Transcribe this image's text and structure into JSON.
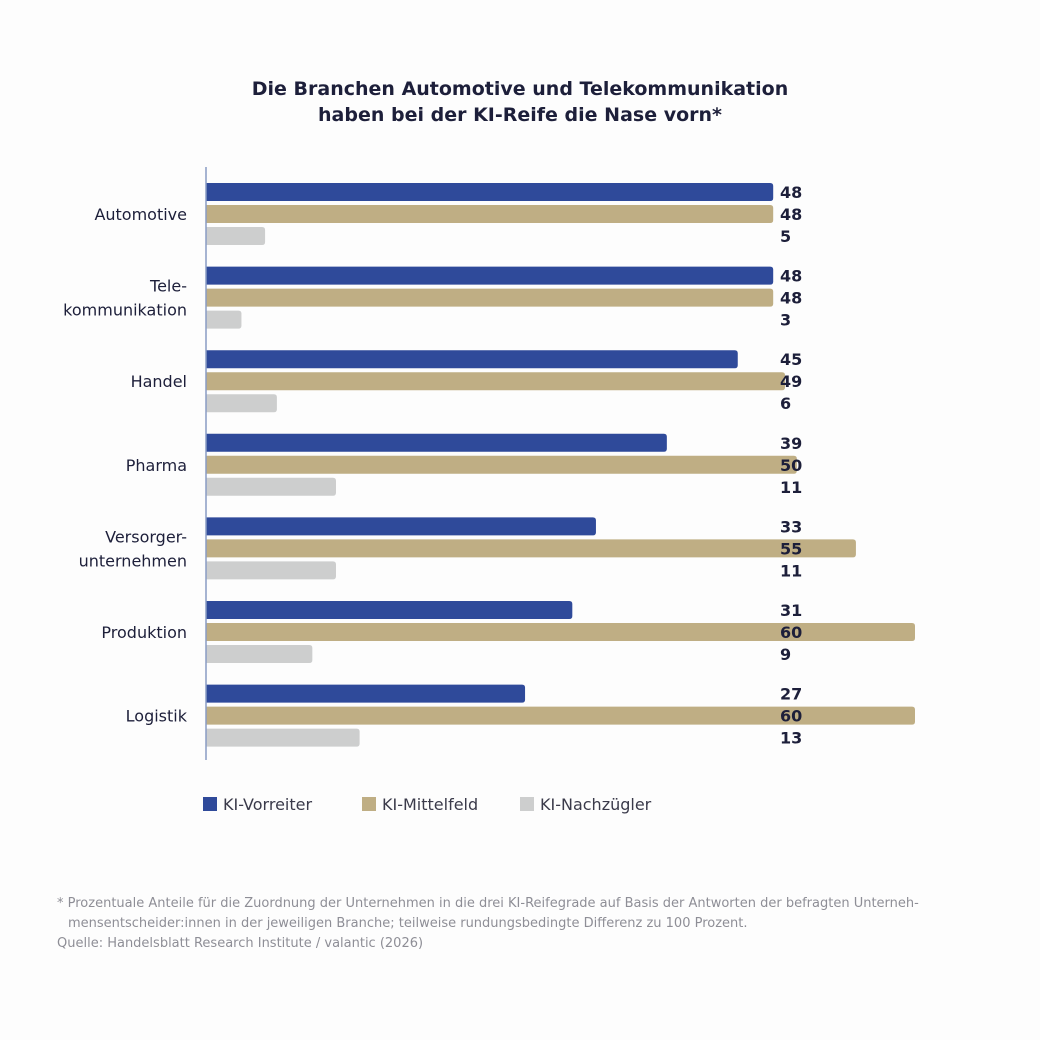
{
  "chart_data": {
    "type": "bar",
    "orientation": "horizontal",
    "title_lines": [
      "Die Branchen Automotive und Telekommunikation",
      "haben bei der KI-Reife die Nase vorn*"
    ],
    "categories": [
      [
        "Automotive"
      ],
      [
        "Tele-",
        "kommunikation"
      ],
      [
        "Handel"
      ],
      [
        "Pharma"
      ],
      [
        "Versorger-",
        "unternehmen"
      ],
      [
        "Produktion"
      ],
      [
        "Logistik"
      ]
    ],
    "series": [
      {
        "name": "KI-Vorreiter",
        "color": "#2f4a9a",
        "values": [
          48,
          48,
          45,
          39,
          33,
          31,
          27
        ]
      },
      {
        "name": "KI-Mittelfeld",
        "color": "#bfae84",
        "values": [
          48,
          48,
          49,
          50,
          55,
          60,
          60
        ]
      },
      {
        "name": "KI-Nachzügler",
        "color": "#cdcece",
        "values": [
          5,
          3,
          6,
          11,
          11,
          9,
          13
        ]
      }
    ],
    "xlim": [
      0,
      60
    ],
    "grid": false,
    "legend": "bottom-left",
    "axis_color": "#8a9cc4"
  },
  "footnote": {
    "line1": "* Prozentuale Anteile für die Zuordnung der Unternehmen in die drei KI-Reifegrade auf Basis der Antworten der befragten Unterneh-",
    "line2": "mensentscheider:innen in der jeweiligen Branche; teilweise rundungsbedingte Differenz zu 100 Prozent.",
    "source": "Quelle: Handelsblatt Research Institute / valantic (2026)"
  }
}
